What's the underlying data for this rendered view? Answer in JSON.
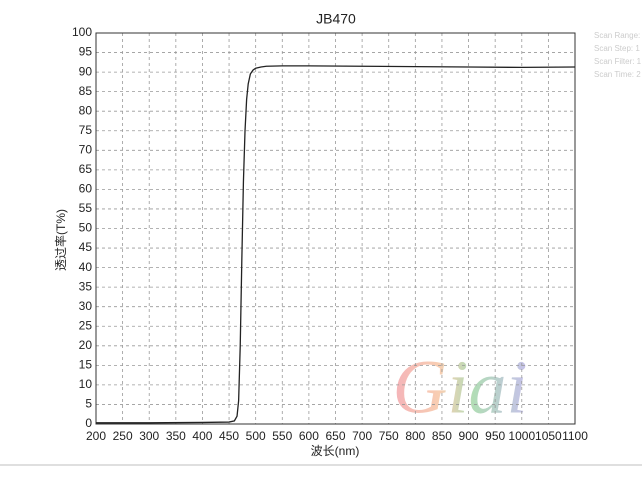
{
  "chart_data": {
    "type": "line",
    "title": "JB470",
    "x_label": "波长(nm)",
    "y_label": "透过率(T%)",
    "x": [
      200,
      300,
      400,
      450,
      460,
      465,
      468,
      471,
      474,
      477,
      480,
      483,
      486,
      490,
      495,
      500,
      510,
      520,
      550,
      600,
      700,
      800,
      900,
      1000,
      1100
    ],
    "series": [
      {
        "name": "JB470",
        "color": "#222222",
        "values": [
          0.3,
          0.3,
          0.4,
          0.5,
          0.8,
          2,
          6,
          20,
          42,
          62,
          75,
          83,
          87,
          89.5,
          90.5,
          91,
          91.3,
          91.5,
          91.6,
          91.6,
          91.5,
          91.4,
          91.3,
          91.2,
          91.3
        ]
      }
    ],
    "xlim": [
      200,
      1100
    ],
    "ylim": [
      0,
      100
    ],
    "xticks": [
      200,
      250,
      300,
      350,
      400,
      450,
      500,
      550,
      600,
      650,
      700,
      750,
      800,
      850,
      900,
      950,
      1000,
      1050,
      1100
    ],
    "yticks": [
      0,
      5,
      10,
      15,
      20,
      25,
      30,
      35,
      40,
      45,
      50,
      55,
      60,
      65,
      70,
      75,
      80,
      85,
      90,
      95,
      100
    ],
    "grid": true,
    "annotations": [
      "Scan Range:",
      "Scan Step: 1",
      "Scan Filter: 1",
      "Scan Time: 2"
    ],
    "watermark": "Giai"
  }
}
